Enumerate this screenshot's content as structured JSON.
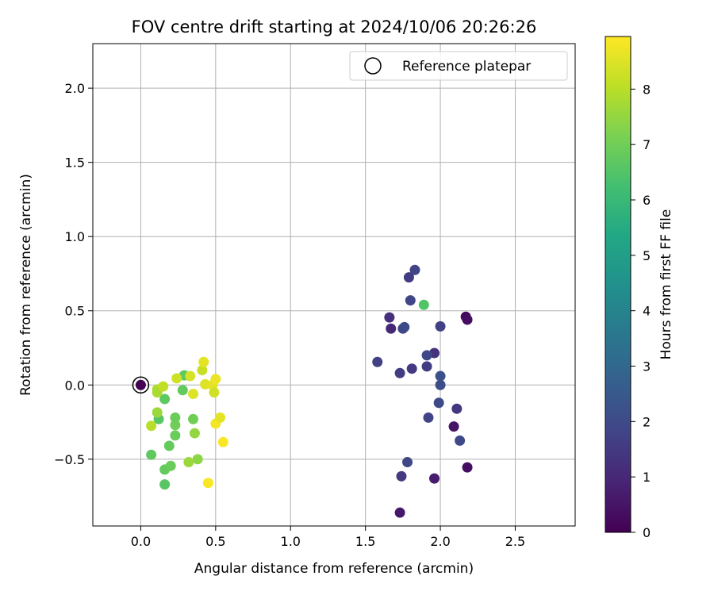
{
  "chart_data": {
    "type": "scatter",
    "title": "FOV centre drift starting at 2024/10/06 20:26:26",
    "xlabel": "Angular distance from reference (arcmin)",
    "ylabel": "Rotation from reference (arcmin)",
    "xlim": [
      -0.32,
      2.9
    ],
    "ylim": [
      -0.95,
      2.3
    ],
    "xticks": [
      0.0,
      0.5,
      1.0,
      1.5,
      2.0,
      2.5
    ],
    "xtick_labels": [
      "0.0",
      "0.5",
      "1.0",
      "1.5",
      "2.0",
      "2.5"
    ],
    "yticks": [
      -0.5,
      0.0,
      0.5,
      1.0,
      1.5,
      2.0
    ],
    "ytick_labels": [
      "−0.5",
      "0.0",
      "0.5",
      "1.0",
      "1.5",
      "2.0"
    ],
    "grid": true,
    "legend": {
      "placement": "top-right",
      "entries": [
        "Reference platepar"
      ]
    },
    "reference_point": {
      "x": 0.0,
      "y": 0.0
    },
    "colorbar": {
      "label": "Hours from first FF file",
      "colormap": "viridis",
      "range": [
        0,
        8.95
      ],
      "ticks": [
        0,
        1,
        2,
        3,
        4,
        5,
        6,
        7,
        8
      ],
      "tick_labels": [
        "0",
        "1",
        "2",
        "3",
        "4",
        "5",
        "6",
        "7",
        "8"
      ]
    },
    "points": [
      {
        "x": 0.0,
        "y": 0.0,
        "hours": 0.0
      },
      {
        "x": 1.73,
        "y": -0.86,
        "hours": 0.6
      },
      {
        "x": 1.96,
        "y": -0.63,
        "hours": 0.7
      },
      {
        "x": 2.18,
        "y": -0.555,
        "hours": 0.3
      },
      {
        "x": 2.17,
        "y": 0.46,
        "hours": 0.2
      },
      {
        "x": 2.18,
        "y": 0.44,
        "hours": 0.3
      },
      {
        "x": 2.09,
        "y": -0.28,
        "hours": 0.5
      },
      {
        "x": 1.67,
        "y": 0.38,
        "hours": 1.0
      },
      {
        "x": 1.66,
        "y": 0.455,
        "hours": 1.2
      },
      {
        "x": 1.74,
        "y": -0.615,
        "hours": 1.5
      },
      {
        "x": 2.11,
        "y": -0.16,
        "hours": 1.4
      },
      {
        "x": 1.96,
        "y": 0.215,
        "hours": 1.3
      },
      {
        "x": 1.79,
        "y": 0.725,
        "hours": 1.6
      },
      {
        "x": 1.83,
        "y": 0.775,
        "hours": 1.8
      },
      {
        "x": 1.8,
        "y": 0.57,
        "hours": 1.9
      },
      {
        "x": 1.58,
        "y": 0.155,
        "hours": 1.7
      },
      {
        "x": 1.73,
        "y": 0.08,
        "hours": 1.6
      },
      {
        "x": 1.81,
        "y": 0.11,
        "hours": 1.5
      },
      {
        "x": 1.91,
        "y": 0.125,
        "hours": 1.6
      },
      {
        "x": 1.91,
        "y": 0.2,
        "hours": 1.9
      },
      {
        "x": 2.0,
        "y": 0.395,
        "hours": 1.7
      },
      {
        "x": 1.75,
        "y": 0.38,
        "hours": 1.8
      },
      {
        "x": 1.76,
        "y": 0.39,
        "hours": 2.0
      },
      {
        "x": 1.78,
        "y": -0.52,
        "hours": 1.9
      },
      {
        "x": 1.92,
        "y": -0.22,
        "hours": 1.8
      },
      {
        "x": 1.99,
        "y": -0.12,
        "hours": 2.0
      },
      {
        "x": 2.0,
        "y": 0.0,
        "hours": 2.1
      },
      {
        "x": 2.0,
        "y": 0.06,
        "hours": 2.2
      },
      {
        "x": 2.13,
        "y": -0.375,
        "hours": 2.0
      },
      {
        "x": 1.89,
        "y": 0.54,
        "hours": 6.5
      },
      {
        "x": 0.07,
        "y": -0.47,
        "hours": 6.7
      },
      {
        "x": 0.16,
        "y": -0.67,
        "hours": 6.6
      },
      {
        "x": 0.16,
        "y": -0.57,
        "hours": 6.8
      },
      {
        "x": 0.2,
        "y": -0.545,
        "hours": 6.9
      },
      {
        "x": 0.12,
        "y": -0.23,
        "hours": 6.6
      },
      {
        "x": 0.16,
        "y": -0.095,
        "hours": 6.7
      },
      {
        "x": 0.19,
        "y": -0.41,
        "hours": 6.8
      },
      {
        "x": 0.23,
        "y": -0.34,
        "hours": 6.9
      },
      {
        "x": 0.23,
        "y": -0.27,
        "hours": 7.0
      },
      {
        "x": 0.23,
        "y": -0.22,
        "hours": 6.9
      },
      {
        "x": 0.28,
        "y": -0.035,
        "hours": 6.8
      },
      {
        "x": 0.29,
        "y": 0.065,
        "hours": 6.7
      },
      {
        "x": 0.35,
        "y": -0.23,
        "hours": 7.0
      },
      {
        "x": 0.38,
        "y": -0.5,
        "hours": 7.4
      },
      {
        "x": 0.32,
        "y": -0.52,
        "hours": 7.6
      },
      {
        "x": 0.36,
        "y": -0.325,
        "hours": 7.5
      },
      {
        "x": 0.11,
        "y": -0.185,
        "hours": 7.6
      },
      {
        "x": 0.07,
        "y": -0.275,
        "hours": 8.0
      },
      {
        "x": 0.11,
        "y": -0.03,
        "hours": 7.9
      },
      {
        "x": 0.11,
        "y": -0.05,
        "hours": 7.8
      },
      {
        "x": 0.15,
        "y": -0.01,
        "hours": 8.1
      },
      {
        "x": 0.24,
        "y": 0.045,
        "hours": 8.3
      },
      {
        "x": 0.33,
        "y": 0.06,
        "hours": 8.4
      },
      {
        "x": 0.35,
        "y": -0.06,
        "hours": 8.5
      },
      {
        "x": 0.41,
        "y": 0.1,
        "hours": 8.2
      },
      {
        "x": 0.42,
        "y": 0.155,
        "hours": 8.6
      },
      {
        "x": 0.43,
        "y": 0.005,
        "hours": 8.5
      },
      {
        "x": 0.48,
        "y": 0.0,
        "hours": 8.6
      },
      {
        "x": 0.49,
        "y": -0.05,
        "hours": 8.3
      },
      {
        "x": 0.5,
        "y": 0.04,
        "hours": 8.7
      },
      {
        "x": 0.5,
        "y": -0.26,
        "hours": 8.8
      },
      {
        "x": 0.53,
        "y": -0.22,
        "hours": 8.6
      },
      {
        "x": 0.55,
        "y": -0.385,
        "hours": 8.9
      },
      {
        "x": 0.45,
        "y": -0.66,
        "hours": 8.9
      }
    ]
  }
}
